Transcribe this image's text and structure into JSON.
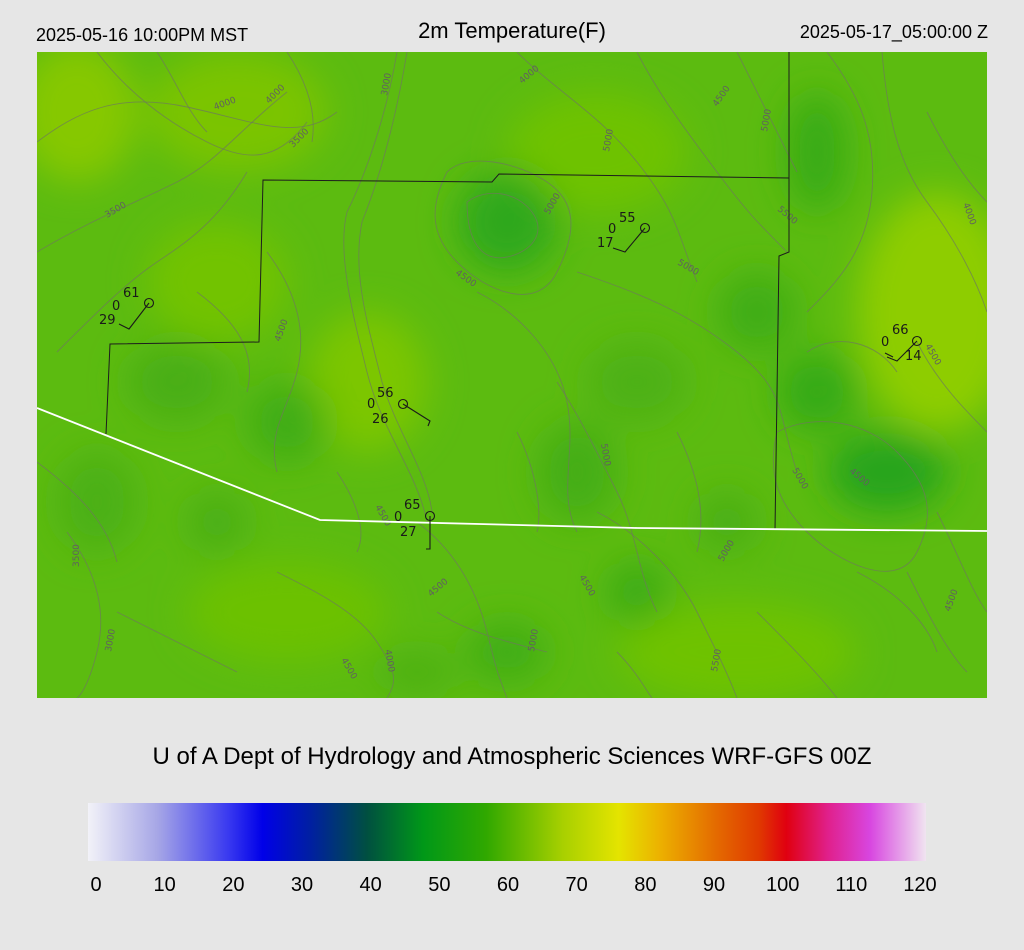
{
  "header": {
    "local_time": "2025-05-16 10:00PM MST",
    "title": "2m Temperature(F)",
    "utc_time": "2025-05-17_05:00:00 Z"
  },
  "credit": "U of A Dept of Hydrology and Atmospheric Sciences WRF-GFS 00Z",
  "colorbar": {
    "min": 0,
    "max": 120,
    "ticks": [
      "0",
      "10",
      "20",
      "30",
      "40",
      "50",
      "60",
      "70",
      "80",
      "90",
      "100",
      "110",
      "120"
    ],
    "stops": [
      {
        "value": 0,
        "color": "#f2f2f8"
      },
      {
        "value": 10,
        "color": "#a6a6e6"
      },
      {
        "value": 20,
        "color": "#3a3af0"
      },
      {
        "value": 25,
        "color": "#0000e8"
      },
      {
        "value": 32,
        "color": "#0020a0"
      },
      {
        "value": 40,
        "color": "#005040"
      },
      {
        "value": 48,
        "color": "#009818"
      },
      {
        "value": 57,
        "color": "#30a800"
      },
      {
        "value": 68,
        "color": "#a8d000"
      },
      {
        "value": 76,
        "color": "#e4e400"
      },
      {
        "value": 82,
        "color": "#ecb000"
      },
      {
        "value": 90,
        "color": "#e46a00"
      },
      {
        "value": 96,
        "color": "#e03a00"
      },
      {
        "value": 100,
        "color": "#e00010"
      },
      {
        "value": 106,
        "color": "#e0208c"
      },
      {
        "value": 112,
        "color": "#d846e0"
      },
      {
        "value": 120,
        "color": "#f0e4f0"
      }
    ]
  },
  "map": {
    "contour_labels": [
      "3000",
      "3500",
      "4000",
      "4500",
      "5000",
      "5500"
    ],
    "stations": [
      {
        "temp": "61",
        "left": "0",
        "right": "29"
      },
      {
        "temp": "55",
        "left": "0",
        "right": "17"
      },
      {
        "temp": "66",
        "left": "0",
        "right": "14"
      },
      {
        "temp": "56",
        "left": "0",
        "right": "26"
      },
      {
        "temp": "65",
        "left": "0",
        "right": "27"
      }
    ]
  }
}
